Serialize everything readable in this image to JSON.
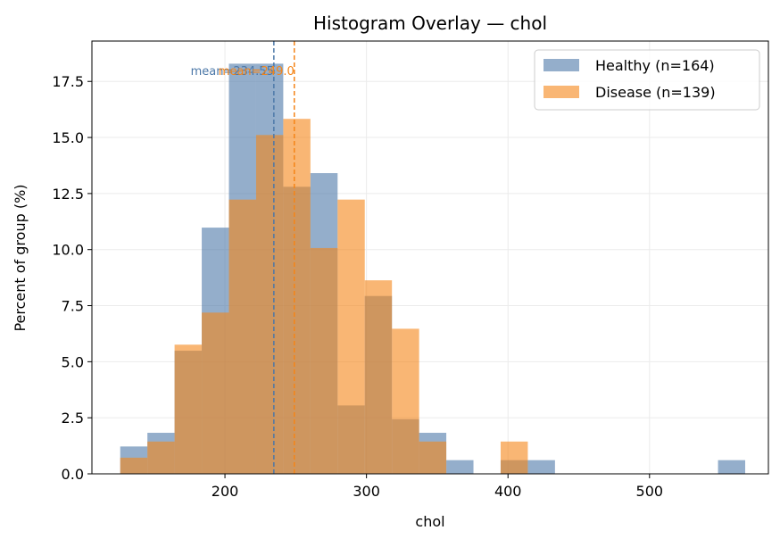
{
  "chart_data": {
    "type": "histogram",
    "title": "Histogram Overlay — chol",
    "xlabel": "chol",
    "ylabel": "Percent of group (%)",
    "xlim": [
      106,
      584
    ],
    "ylim": [
      0,
      19.3
    ],
    "xticks": [
      200,
      300,
      400,
      500
    ],
    "yticks": [
      0.0,
      2.5,
      5.0,
      7.5,
      10.0,
      12.5,
      15.0,
      17.5
    ],
    "grid": true,
    "legend_position": "top-right",
    "bins": [
      126.0,
      145.2,
      164.4,
      183.6,
      202.8,
      222.0,
      241.2,
      260.4,
      279.6,
      298.8,
      318.0,
      337.2,
      356.4,
      375.6,
      394.8,
      414.0,
      433.2,
      452.4,
      471.6,
      490.8,
      510.0,
      529.2,
      548.4,
      567.6
    ],
    "series": [
      {
        "name": "Healthy (n=164)",
        "color": "#4c78a8",
        "values": [
          1.22,
          1.83,
          5.49,
          10.98,
          18.29,
          18.29,
          12.8,
          13.41,
          3.05,
          7.93,
          2.44,
          1.83,
          0.61,
          0.0,
          0.61,
          0.61,
          0.0,
          0.0,
          0.0,
          0.0,
          0.0,
          0.0,
          0.61
        ],
        "mean": 234.55,
        "mean_label": "mean=234.55"
      },
      {
        "name": "Disease (n=139)",
        "color": "#f58518",
        "values": [
          0.72,
          1.44,
          5.76,
          7.19,
          12.23,
          15.11,
          15.83,
          10.07,
          12.23,
          8.63,
          6.47,
          1.44,
          0.0,
          0.0,
          1.44,
          0.0,
          0.0,
          0.0,
          0.0,
          0.0,
          0.0,
          0.0,
          0.0
        ],
        "mean": 249.0,
        "mean_label": "mean=249.0"
      }
    ]
  }
}
